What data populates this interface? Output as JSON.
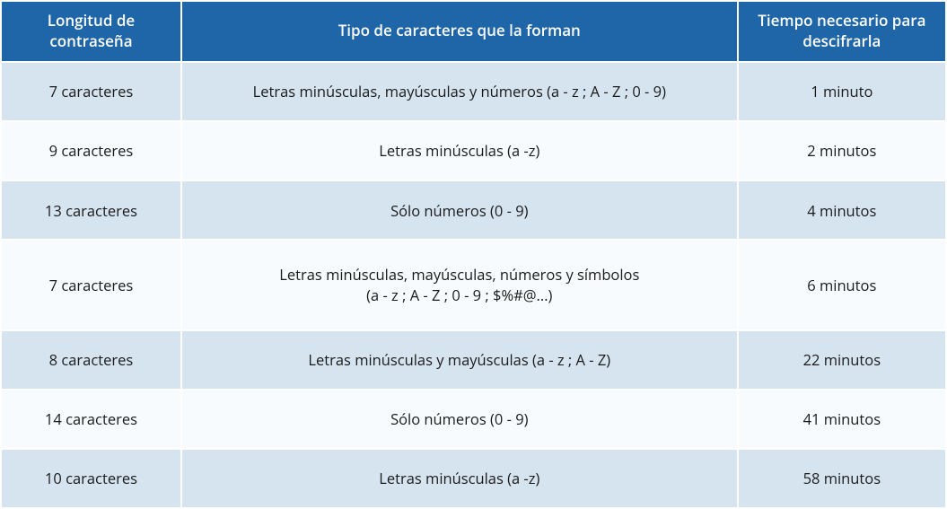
{
  "table": {
    "header_bg": "#1e66a8",
    "header_color": "#ffffff",
    "header_fontsize": "17px",
    "body_fontsize": "16.5px",
    "body_color": "#1a1a1a",
    "row_bg_light": "#d6e4f0",
    "row_bg_white": "#f8fbfd",
    "columns": [
      {
        "label": "Longitud de\ncontraseña",
        "width": "19%"
      },
      {
        "label": "Tipo de caracteres que la forman",
        "width": "59%"
      },
      {
        "label": "Tiempo necesario para descifrarla",
        "width": "22%"
      }
    ],
    "rows": [
      {
        "length": "7 caracteres",
        "type": "Letras minúsculas, mayúsculas y números (a - z ; A - Z ; 0 - 9)",
        "time": "1 minuto"
      },
      {
        "length": "9 caracteres",
        "type": "Letras minúsculas (a -z)",
        "time": "2 minutos"
      },
      {
        "length": "13 caracteres",
        "type": "Sólo números (0 - 9)",
        "time": "4 minutos"
      },
      {
        "length": "7 caracteres",
        "type": "Letras minúsculas, mayúsculas, números y símbolos\n(a - z ; A - Z ; 0 - 9 ; $%#@...)",
        "time": "6 minutos"
      },
      {
        "length": "8 caracteres",
        "type": "Letras minúsculas y mayúsculas (a - z ; A - Z)",
        "time": "22 minutos"
      },
      {
        "length": "14 caracteres",
        "type": "Sólo números (0 - 9)",
        "time": "41 minutos"
      },
      {
        "length": "10 caracteres",
        "type": "Letras minúsculas (a -z)",
        "time": "58 minutos"
      }
    ]
  }
}
